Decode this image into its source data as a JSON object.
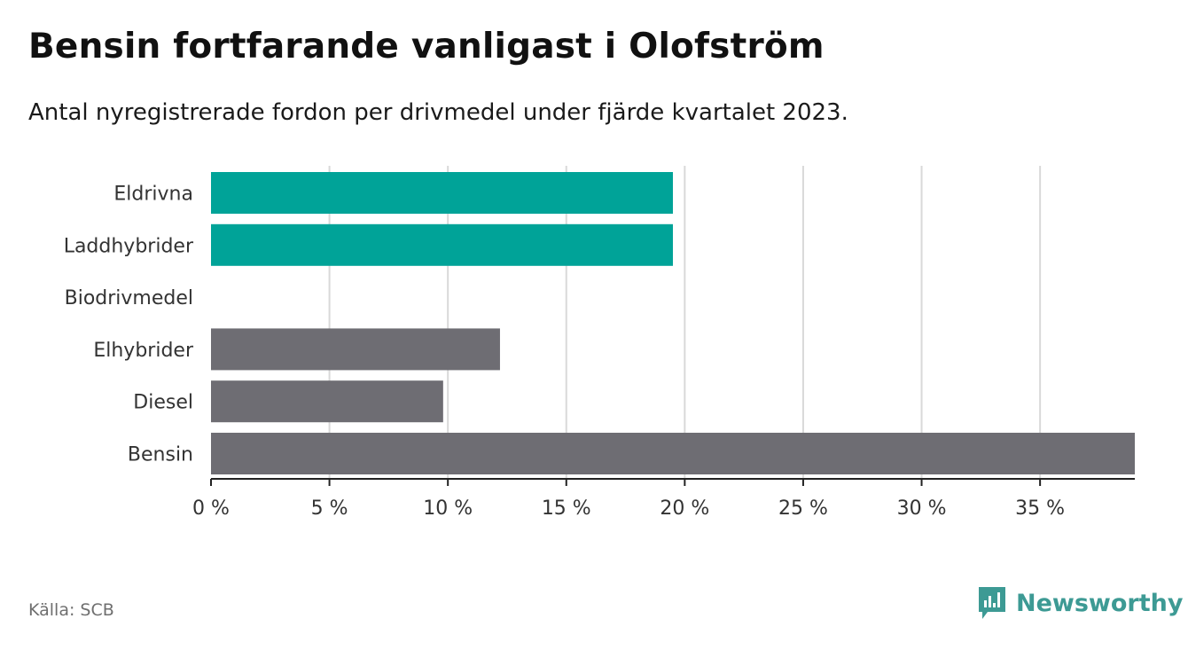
{
  "header": {
    "title": "Bensin fortfarande vanligast i Olofström",
    "subtitle": "Antal nyregistrerade fordon per drivmedel under fjärde kvartalet 2023."
  },
  "chart_data": {
    "type": "bar",
    "orientation": "horizontal",
    "title": "Bensin fortfarande vanligast i Olofström",
    "subtitle": "Antal nyregistrerade fordon per drivmedel under fjärde kvartalet 2023.",
    "xlabel": "",
    "ylabel": "",
    "categories": [
      "Eldrivna",
      "Laddhybrider",
      "Biodrivmedel",
      "Elhybrider",
      "Diesel",
      "Bensin"
    ],
    "values": [
      19.5,
      19.5,
      0,
      12.2,
      9.8,
      39.0
    ],
    "colors": [
      "#00a398",
      "#00a398",
      "#00a398",
      "#6e6d73",
      "#6e6d73",
      "#6e6d73"
    ],
    "xlim": [
      0,
      39
    ],
    "xticks": [
      0,
      5,
      10,
      15,
      20,
      25,
      30,
      35
    ],
    "xtick_labels": [
      "0 %",
      "5 %",
      "10 %",
      "15 %",
      "20 %",
      "25 %",
      "30 %",
      "35 %"
    ],
    "grid": true
  },
  "footer": {
    "source": "Källa: SCB",
    "brand": "Newsworthy",
    "brand_color": "#3d9a94"
  }
}
